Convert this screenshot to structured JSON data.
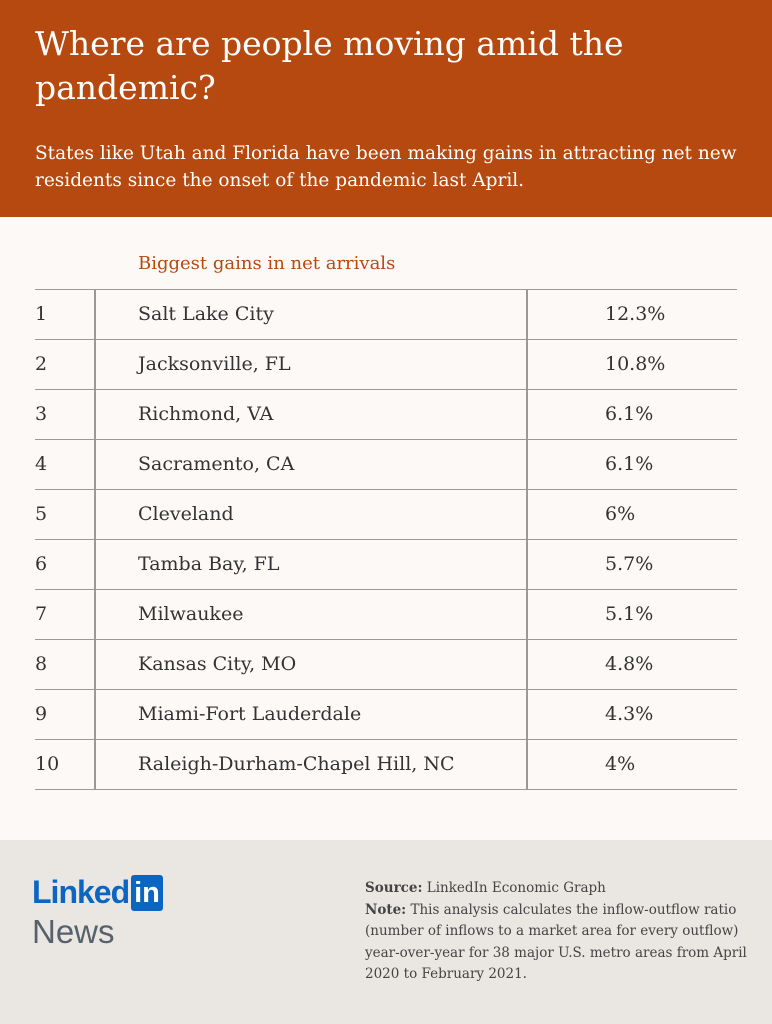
{
  "header": {
    "title": "Where are people moving amid the pandemic?",
    "subtitle": "States like Utah and Florida have been making gains in attracting net new residents since the onset of the pandemic last April."
  },
  "colors": {
    "header": "#b5490f",
    "accent": "#b5490f",
    "linkedin_blue": "#0a66c2",
    "footer": "#eae6e1"
  },
  "chart_data": {
    "type": "table",
    "title": "Biggest gains in net arrivals",
    "rows": [
      {
        "rank": "1",
        "city": "Salt Lake City",
        "value": "12.3%"
      },
      {
        "rank": "2",
        "city": "Jacksonville, FL",
        "value": "10.8%"
      },
      {
        "rank": "3",
        "city": "Richmond, VA",
        "value": "6.1%"
      },
      {
        "rank": "4",
        "city": "Sacramento, CA",
        "value": "6.1%"
      },
      {
        "rank": "5",
        "city": "Cleveland",
        "value": "6%"
      },
      {
        "rank": "6",
        "city": "Tamba Bay, FL",
        "value": "5.7%"
      },
      {
        "rank": "7",
        "city": "Milwaukee",
        "value": "5.1%"
      },
      {
        "rank": "8",
        "city": "Kansas City, MO",
        "value": "4.8%"
      },
      {
        "rank": "9",
        "city": "Miami-Fort Lauderdale",
        "value": "4.3%"
      },
      {
        "rank": "10",
        "city": "Raleigh-Durham-Chapel Hill, NC",
        "value": "4%"
      }
    ]
  },
  "footer": {
    "logo": {
      "linked": "Linked",
      "in": "in",
      "news": "News"
    },
    "source_label": "Source:",
    "source_text": " LinkedIn Economic Graph",
    "note_label": "Note:",
    "note_text": " This analysis calculates the inflow-outflow ratio (number of inflows to a market area for every outflow) year-over-year for 38 major U.S. metro areas from April 2020 to February 2021."
  }
}
